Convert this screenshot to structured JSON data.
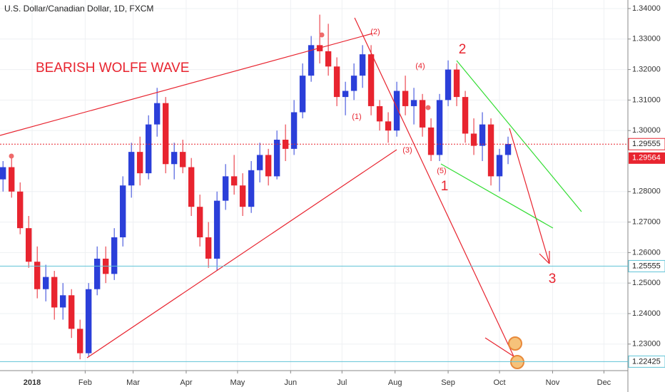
{
  "chart_data": {
    "type": "candlestick",
    "title": "U.S. Dollar/Canadian Dollar, 1D, FXCM",
    "up_color": "#2b3fd9",
    "down_color": "#e8242f",
    "xlim": [
      -18.75,
      348
    ],
    "xticks": [
      {
        "value": 0,
        "label": "2018"
      },
      {
        "value": 31,
        "label": "Feb"
      },
      {
        "value": 59,
        "label": "Mar"
      },
      {
        "value": 90,
        "label": "Apr"
      },
      {
        "value": 120,
        "label": "May"
      },
      {
        "value": 151,
        "label": "Jun"
      },
      {
        "value": 181,
        "label": "Jul"
      },
      {
        "value": 212,
        "label": "Aug"
      },
      {
        "value": 243,
        "label": "Sep"
      },
      {
        "value": 273,
        "label": "Oct"
      },
      {
        "value": 304,
        "label": "Nov"
      },
      {
        "value": 334,
        "label": "Dec"
      }
    ],
    "ylim": [
      1.2213,
      1.3428
    ],
    "yticks": [
      {
        "value": 1.23,
        "label": "1.23000"
      },
      {
        "value": 1.24,
        "label": "1.24000"
      },
      {
        "value": 1.25,
        "label": "1.25000"
      },
      {
        "value": 1.26,
        "label": "1.26000"
      },
      {
        "value": 1.27,
        "label": "1.27000"
      },
      {
        "value": 1.28,
        "label": "1.28000"
      },
      {
        "value": 1.3,
        "label": "1.30000"
      },
      {
        "value": 1.31,
        "label": "1.31000"
      },
      {
        "value": 1.32,
        "label": "1.32000"
      },
      {
        "value": 1.33,
        "label": "1.33000"
      },
      {
        "value": 1.34,
        "label": "1.34000"
      }
    ],
    "x": [
      -17,
      -12,
      -7,
      -2,
      3,
      8,
      13,
      18,
      23,
      28,
      33,
      38,
      43,
      48,
      53,
      58,
      63,
      68,
      73,
      78,
      83,
      88,
      93,
      98,
      103,
      108,
      113,
      118,
      123,
      128,
      133,
      138,
      143,
      148,
      153,
      158,
      163,
      168,
      173,
      178,
      183,
      188,
      193,
      198,
      203,
      208,
      213,
      218,
      223,
      228,
      233,
      238,
      243,
      248,
      253,
      258,
      263,
      268,
      273,
      278
    ],
    "open": [
      1.284,
      1.288,
      1.28,
      1.268,
      1.257,
      1.248,
      1.252,
      1.242,
      1.246,
      1.235,
      1.227,
      1.248,
      1.258,
      1.253,
      1.265,
      1.282,
      1.293,
      1.286,
      1.302,
      1.309,
      1.289,
      1.293,
      1.288,
      1.275,
      1.265,
      1.258,
      1.277,
      1.285,
      1.282,
      1.275,
      1.287,
      1.292,
      1.285,
      1.297,
      1.294,
      1.306,
      1.318,
      1.328,
      1.326,
      1.321,
      1.311,
      1.313,
      1.318,
      1.325,
      1.308,
      1.303,
      1.3,
      1.313,
      1.308,
      1.31,
      1.301,
      1.292,
      1.31,
      1.32,
      1.311,
      1.299,
      1.295,
      1.302,
      1.285,
      1.292
    ],
    "high": [
      1.29,
      1.291,
      1.283,
      1.272,
      1.262,
      1.256,
      1.254,
      1.25,
      1.248,
      1.238,
      1.25,
      1.262,
      1.262,
      1.268,
      1.285,
      1.296,
      1.298,
      1.305,
      1.314,
      1.311,
      1.296,
      1.297,
      1.291,
      1.279,
      1.27,
      1.28,
      1.289,
      1.292,
      1.286,
      1.29,
      1.296,
      1.294,
      1.3,
      1.302,
      1.31,
      1.322,
      1.331,
      1.338,
      1.335,
      1.324,
      1.316,
      1.322,
      1.328,
      1.328,
      1.31,
      1.306,
      1.316,
      1.318,
      1.314,
      1.312,
      1.304,
      1.312,
      1.323,
      1.322,
      1.313,
      1.304,
      1.306,
      1.304,
      1.294,
      1.298
    ],
    "low": [
      1.28,
      1.278,
      1.266,
      1.255,
      1.245,
      1.244,
      1.238,
      1.238,
      1.232,
      1.225,
      1.226,
      1.246,
      1.25,
      1.251,
      1.262,
      1.278,
      1.282,
      1.284,
      1.298,
      1.286,
      1.284,
      1.286,
      1.272,
      1.262,
      1.255,
      1.254,
      1.274,
      1.279,
      1.272,
      1.273,
      1.283,
      1.282,
      1.284,
      1.29,
      1.292,
      1.304,
      1.316,
      1.322,
      1.318,
      1.308,
      1.305,
      1.31,
      1.314,
      1.305,
      1.3,
      1.296,
      1.298,
      1.305,
      1.302,
      1.298,
      1.29,
      1.29,
      1.308,
      1.308,
      1.296,
      1.292,
      1.29,
      1.282,
      1.28,
      1.289
    ],
    "close": [
      1.288,
      1.28,
      1.268,
      1.257,
      1.248,
      1.252,
      1.242,
      1.246,
      1.235,
      1.227,
      1.248,
      1.258,
      1.253,
      1.265,
      1.282,
      1.293,
      1.286,
      1.302,
      1.309,
      1.289,
      1.293,
      1.288,
      1.275,
      1.265,
      1.258,
      1.277,
      1.285,
      1.282,
      1.275,
      1.287,
      1.292,
      1.285,
      1.297,
      1.294,
      1.306,
      1.318,
      1.328,
      1.326,
      1.321,
      1.311,
      1.313,
      1.318,
      1.325,
      1.308,
      1.303,
      1.3,
      1.313,
      1.308,
      1.31,
      1.301,
      1.292,
      1.31,
      1.32,
      1.311,
      1.299,
      1.295,
      1.302,
      1.285,
      1.292,
      1.2956
    ],
    "hlines": [
      {
        "value": 1.29555,
        "label": "1.29555",
        "color": "#e8242f"
      },
      {
        "value": 1.25555,
        "label": "1.25555",
        "color": "#5fc3d6"
      },
      {
        "value": 1.22425,
        "label": "1.22425",
        "color": "#5fc3d6"
      }
    ],
    "last_price": {
      "value": 1.29564,
      "label": "1.29564"
    },
    "annotations": [
      "BEARISH WOLFE WAVE",
      "1",
      "2",
      "3",
      "(1)",
      "(2)",
      "(3)",
      "(4)",
      "(5)"
    ]
  }
}
